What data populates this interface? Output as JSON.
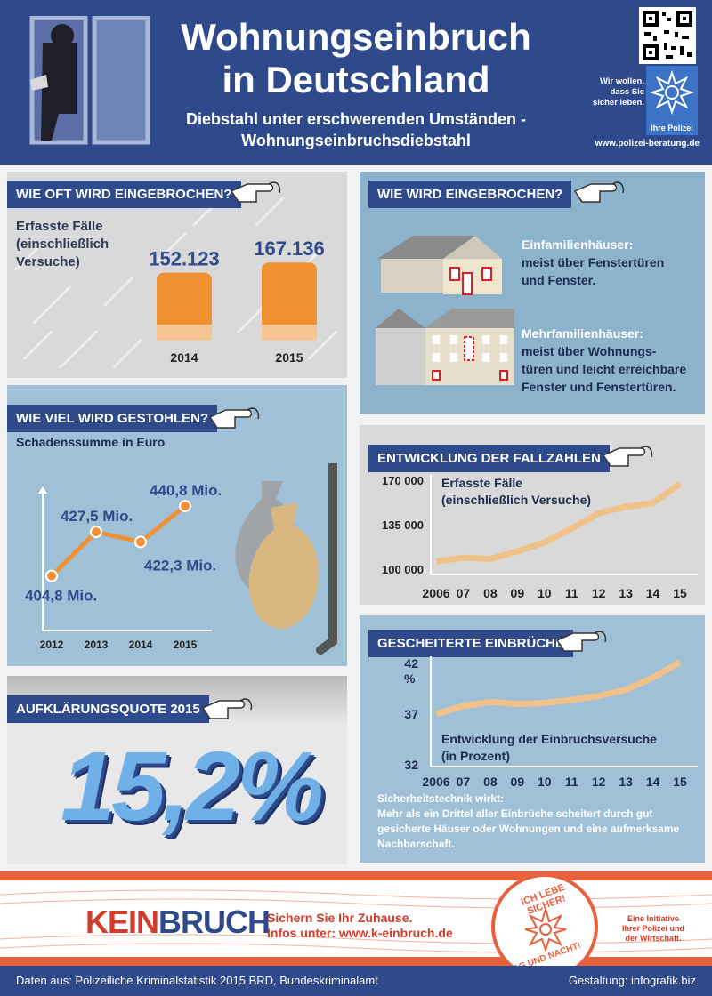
{
  "header": {
    "title_line1": "Wohnungseinbruch",
    "title_line2": "in Deutschland",
    "subtitle_line1": "Diebstahl unter erschwerenden Umständen -",
    "subtitle_line2": "Wohnungseinbruchsdiebstahl",
    "badge_line1": "Wir wollen,",
    "badge_line2": "dass Sie",
    "badge_line3": "sicher leben.",
    "badge_org": "Ihre Polizei",
    "url": "www.polizei-beratung.de"
  },
  "cases": {
    "heading": "WIE OFT WIRD EINGEBROCHEN?",
    "label_line1": "Erfasste Fälle",
    "label_line2": "(einschließlich",
    "label_line3": "Versuche)",
    "bars": [
      {
        "year": "2014",
        "value_label": "152.123",
        "value": 152123
      },
      {
        "year": "2015",
        "value_label": "167.136",
        "value": 167136
      }
    ]
  },
  "how": {
    "heading": "WIE WIRD EINGEBROCHEN?",
    "single_title": "Einfamilienhäuser:",
    "single_line1": "meist über Fenstertüren",
    "single_line2": "und Fenster.",
    "multi_title": "Mehrfamilienhäuser:",
    "multi_line1": "meist über Wohnungs-",
    "multi_line2": "türen und leicht erreichbare",
    "multi_line3": "Fenster und Fenstertüren."
  },
  "stolen": {
    "heading": "WIE VIEL WIRD GESTOHLEN?",
    "label": "Schadenssumme in Euro",
    "unit": "Mio.",
    "chart_data": {
      "type": "line",
      "x": [
        "2012",
        "2013",
        "2014",
        "2015"
      ],
      "values": [
        404.8,
        427.5,
        422.3,
        440.8
      ],
      "value_labels": [
        "404,8",
        "427,5",
        "422,3",
        "440,8"
      ]
    }
  },
  "clearance": {
    "heading": "AUFKLÄRUNGSQUOTE 2015",
    "value": "15,2%"
  },
  "trend": {
    "heading": "ENTWICKLUNG DER FALLZAHLEN",
    "label_line1": "Erfasste Fälle",
    "label_line2": "(einschließlich Versuche)",
    "chart_data": {
      "type": "line",
      "x": [
        "2006",
        "07",
        "08",
        "09",
        "10",
        "11",
        "12",
        "13",
        "14",
        "15"
      ],
      "values": [
        106000,
        109000,
        108000,
        114000,
        121000,
        132000,
        144000,
        149000,
        152000,
        167000
      ],
      "yticks": [
        "170 000",
        "135 000",
        "100 000"
      ],
      "ylim": [
        100000,
        170000
      ]
    }
  },
  "failed": {
    "heading": "GESCHEITERTE EINBRÜCHE",
    "label_line1": "Entwicklung der Einbruchsversuche",
    "label_line2": "(in Prozent)",
    "unit": "%",
    "chart_data": {
      "type": "line",
      "x": [
        "2006",
        "07",
        "08",
        "09",
        "10",
        "11",
        "12",
        "13",
        "14",
        "15"
      ],
      "values": [
        37.0,
        37.8,
        38.2,
        38.0,
        38.1,
        38.4,
        38.8,
        39.4,
        40.6,
        42.1
      ],
      "yticks": [
        "42",
        "37",
        "32"
      ],
      "ylim": [
        32,
        42
      ]
    },
    "note_title": "Sicherheitstechnik wirkt:",
    "note_line1": "Mehr als ein Drittel aller Einbrüche scheitert durch gut",
    "note_line2": "gesicherte Häuser oder Wohnungen und eine aufmerksame",
    "note_line3": "Nachbarschaft."
  },
  "banner": {
    "logo_k": "K",
    "logo_ein": "EIN",
    "logo_bruch": "BRUCH",
    "line1": "Sichern Sie Ihr Zuhause.",
    "line2": "Infos unter: www.k-einbruch.de",
    "stamp_top": "ICH LEBE SICHER!",
    "stamp_bottom": "TAG UND NACHT!",
    "side_line1": "Eine Initiative",
    "side_line2": "Ihrer Polizei und",
    "side_line3": "der Wirtschaft."
  },
  "footer": {
    "source": "Daten aus: Polizeiliche Kriminalstatistik 2015 BRD, Bundeskriminalamt",
    "credit": "Gestaltung: infografik.biz"
  },
  "colors": {
    "navy": "#2e4a8a",
    "orange": "#f29133",
    "light_blue": "#8db3cc",
    "gray": "#d9d9d9",
    "red": "#d23c2a"
  }
}
